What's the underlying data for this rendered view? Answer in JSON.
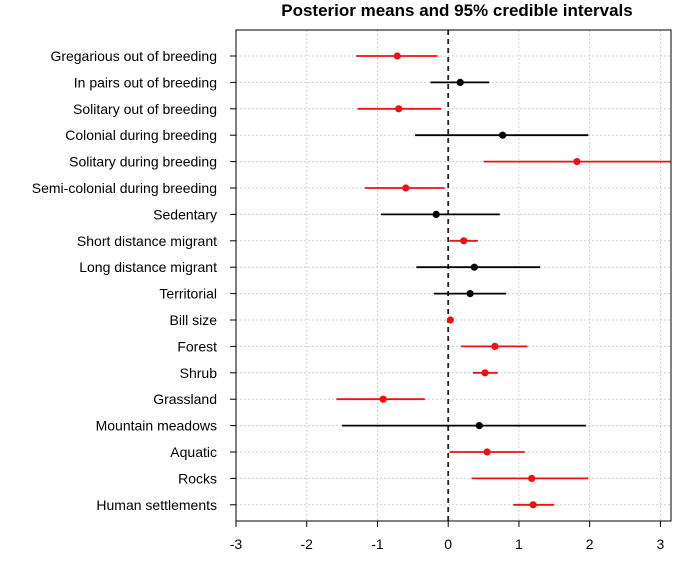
{
  "chart_data": {
    "type": "interval",
    "title": "Posterior means and 95% credible intervals",
    "xlabel": "",
    "ylabel": "",
    "xlim": [
      -3.0,
      3.15
    ],
    "xticks": [
      -3,
      -2,
      -1,
      0,
      1,
      2,
      3
    ],
    "grid": true,
    "colors": {
      "significant": "#ee1111",
      "non_significant": "#000000"
    },
    "items": [
      {
        "label": "Gregarious out of breeding",
        "mean": -0.72,
        "lower": -1.3,
        "upper": -0.15,
        "significant": true
      },
      {
        "label": "In pairs out of breeding",
        "mean": 0.17,
        "lower": -0.25,
        "upper": 0.58,
        "significant": false
      },
      {
        "label": "Solitary out of breeding",
        "mean": -0.7,
        "lower": -1.28,
        "upper": -0.1,
        "significant": true
      },
      {
        "label": "Colonial during breeding",
        "mean": 0.77,
        "lower": -0.47,
        "upper": 1.98,
        "significant": false
      },
      {
        "label": "Solitary during breeding",
        "mean": 1.82,
        "lower": 0.5,
        "upper": 3.15,
        "significant": true
      },
      {
        "label": "Semi-colonial during breeding",
        "mean": -0.6,
        "lower": -1.18,
        "upper": -0.05,
        "significant": true
      },
      {
        "label": "Sedentary",
        "mean": -0.17,
        "lower": -0.95,
        "upper": 0.73,
        "significant": false
      },
      {
        "label": "Short distance migrant",
        "mean": 0.22,
        "lower": 0.02,
        "upper": 0.42,
        "significant": true
      },
      {
        "label": "Long distance migrant",
        "mean": 0.37,
        "lower": -0.45,
        "upper": 1.3,
        "significant": false
      },
      {
        "label": "Territorial",
        "mean": 0.31,
        "lower": -0.2,
        "upper": 0.82,
        "significant": false
      },
      {
        "label": "Bill size",
        "mean": 0.03,
        "lower": 0.0,
        "upper": 0.06,
        "significant": true
      },
      {
        "label": "Forest",
        "mean": 0.66,
        "lower": 0.18,
        "upper": 1.12,
        "significant": true
      },
      {
        "label": "Shrub",
        "mean": 0.52,
        "lower": 0.35,
        "upper": 0.7,
        "significant": true
      },
      {
        "label": "Grassland",
        "mean": -0.92,
        "lower": -1.58,
        "upper": -0.33,
        "significant": true
      },
      {
        "label": "Mountain meadows",
        "mean": 0.44,
        "lower": -1.5,
        "upper": 1.95,
        "significant": false
      },
      {
        "label": "Aquatic",
        "mean": 0.55,
        "lower": 0.02,
        "upper": 1.08,
        "significant": true
      },
      {
        "label": "Rocks",
        "mean": 1.18,
        "lower": 0.33,
        "upper": 1.98,
        "significant": true
      },
      {
        "label": "Human settlements",
        "mean": 1.2,
        "lower": 0.92,
        "upper": 1.5,
        "significant": true
      }
    ]
  }
}
